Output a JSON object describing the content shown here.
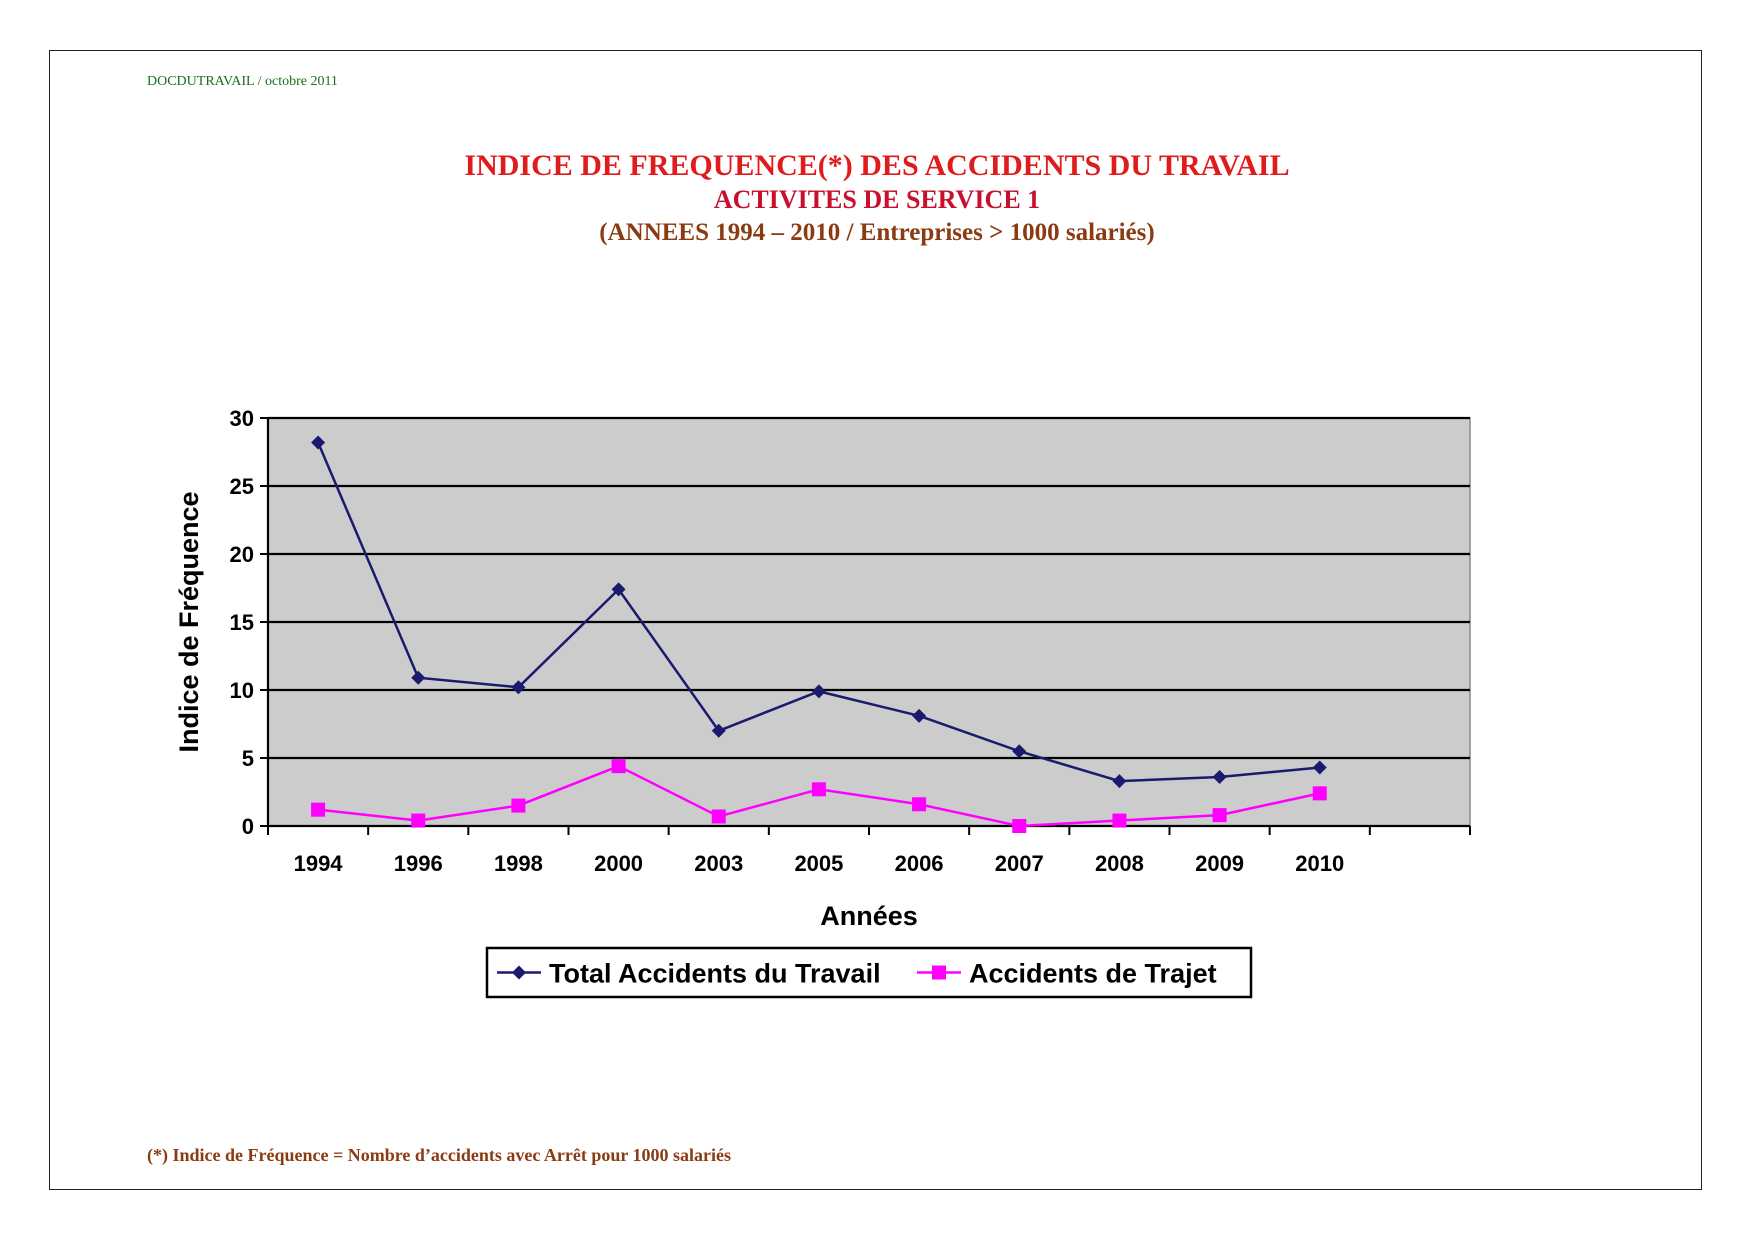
{
  "header_note": "DOCDUTRAVAIL / octobre 2011",
  "footnote": "(*) Indice de Fréquence = Nombre d’accidents avec Arrêt pour 1000 salariés",
  "colors": {
    "plot_background": "#cccccc",
    "series_total": "#1a1a6e",
    "series_trajet": "#ff00ff",
    "title": "#e01b1b",
    "subtitle_brown": "#8a3b12"
  },
  "chart_data": {
    "type": "line",
    "title": "INDICE DE FREQUENCE(*) DES ACCIDENTS DU TRAVAIL",
    "subtitle": "ACTIVITES DE SERVICE 1",
    "subtitle2": "(ANNEES 1994 – 2010 / Entreprises > 1000 salariés)",
    "xlabel": "Années",
    "ylabel": "Indice de Fréquence",
    "categories": [
      "1994",
      "1996",
      "1998",
      "2000",
      "2003",
      "2005",
      "2006",
      "2007",
      "2008",
      "2009",
      "2010"
    ],
    "category_slots": 12,
    "ylim": [
      0,
      30
    ],
    "yticks": [
      0,
      5,
      10,
      15,
      20,
      25,
      30
    ],
    "grid": true,
    "legend_position": "bottom",
    "series": [
      {
        "name": "Total Accidents du Travail",
        "marker": "diamond",
        "values": [
          28.2,
          10.9,
          10.2,
          17.4,
          7.0,
          9.9,
          8.1,
          5.5,
          3.3,
          3.6,
          4.3
        ]
      },
      {
        "name": "Accidents de Trajet",
        "marker": "square",
        "values": [
          1.2,
          0.4,
          1.5,
          4.4,
          0.7,
          2.7,
          1.6,
          0.0,
          0.4,
          0.8,
          2.4
        ]
      }
    ]
  }
}
